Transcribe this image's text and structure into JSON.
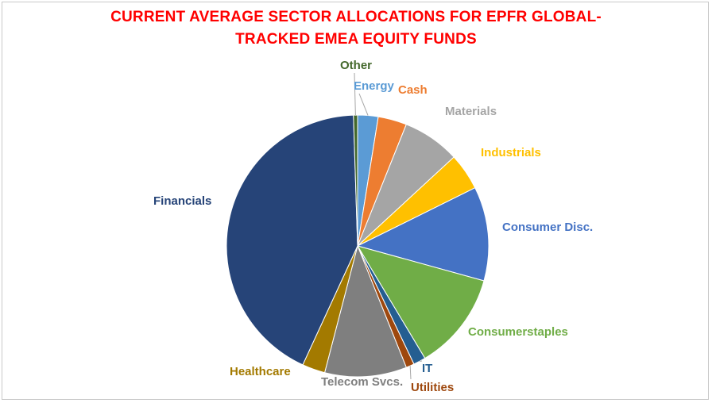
{
  "chart_data": {
    "type": "pie",
    "title": [
      "CURRENT AVERAGE SECTOR ALLOCATIONS FOR EPFR GLOBAL-",
      "TRACKED EMEA EQUITY FUNDS"
    ],
    "slices": [
      {
        "key": "energy",
        "label": "Energy",
        "value": 2.5,
        "color": "#5b9bd5"
      },
      {
        "key": "cash",
        "label": "Cash",
        "value": 3.5,
        "color": "#ed7d31"
      },
      {
        "key": "materials",
        "label": "Materials",
        "value": 7.0,
        "color": "#a5a5a5"
      },
      {
        "key": "industrials",
        "label": "Industrials",
        "value": 4.5,
        "color": "#ffc000"
      },
      {
        "key": "consumer_disc",
        "label": "Consumer Disc.",
        "value": 11.5,
        "color": "#4472c4"
      },
      {
        "key": "consumerstaples",
        "label": "Consumerstaples",
        "value": 12.0,
        "color": "#70ad47"
      },
      {
        "key": "it",
        "label": "IT",
        "value": 1.5,
        "color": "#255e91"
      },
      {
        "key": "utilities",
        "label": "Utilities",
        "value": 1.0,
        "color": "#9e480e"
      },
      {
        "key": "telecom",
        "label": "Telecom Svcs.",
        "value": 10.0,
        "color": "#7f7f7f"
      },
      {
        "key": "healthcare",
        "label": "Healthcare",
        "value": 2.8,
        "color": "#a37a00"
      },
      {
        "key": "financials",
        "label": "Financials",
        "value": 42.2,
        "color": "#264478"
      },
      {
        "key": "other",
        "label": "Other",
        "value": 0.5,
        "color": "#43682b"
      }
    ]
  }
}
